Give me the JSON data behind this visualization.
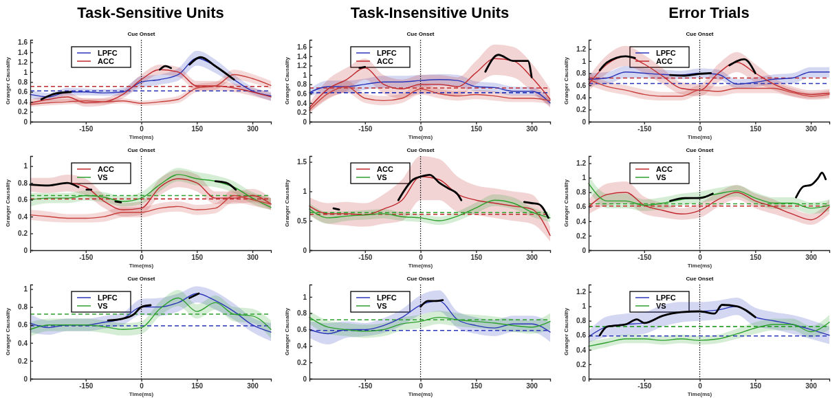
{
  "chart_data": [
    {
      "type": "line",
      "title": "Task-Sensitive Units",
      "xlabel": "Time(ms)",
      "ylabel": "Granger Causality",
      "xlim": [
        -300,
        350
      ],
      "xticks": [
        -150,
        0,
        150,
        300
      ],
      "ylim": [
        0,
        1.65
      ],
      "yticks": [
        0,
        0.2,
        0.4,
        0.6,
        0.8,
        1,
        1.2,
        1.4,
        1.6
      ],
      "legend": "top left",
      "ref_lines": [
        {
          "axis": "x",
          "value": 0,
          "label": "Cue Onset",
          "color": "#000000",
          "line_style": "dotted"
        },
        {
          "axis": "y",
          "value": 0.71,
          "label": null,
          "color": "#c0282d",
          "line_style": "dashed"
        },
        {
          "axis": "y",
          "value": 0.62,
          "label": null,
          "color": "#2a35b8",
          "line_style": "dashed"
        }
      ],
      "series": [
        {
          "name": "LPFC",
          "color": "#2a35b8",
          "x": [
            -300,
            -250,
            -200,
            -150,
            -100,
            -50,
            0,
            50,
            100,
            150,
            200,
            250,
            300,
            350
          ],
          "values": [
            0.55,
            0.5,
            0.6,
            0.6,
            0.58,
            0.6,
            0.8,
            0.85,
            0.95,
            1.28,
            1.12,
            0.85,
            0.62,
            0.52
          ],
          "lower": [
            0.47,
            0.43,
            0.53,
            0.53,
            0.52,
            0.53,
            0.68,
            0.75,
            0.83,
            1.13,
            0.98,
            0.75,
            0.55,
            0.42
          ],
          "upper": [
            0.63,
            0.58,
            0.68,
            0.67,
            0.65,
            0.68,
            0.92,
            0.95,
            1.08,
            1.43,
            1.25,
            0.95,
            0.7,
            0.6
          ]
        },
        {
          "name": "ACC",
          "color": "#c0282d",
          "x": [
            -300,
            -250,
            -200,
            -150,
            -100,
            -50,
            0,
            50,
            100,
            150,
            200,
            250,
            300,
            350
          ],
          "values": [
            0.38,
            0.45,
            0.5,
            0.38,
            0.4,
            0.55,
            0.85,
            1.05,
            1.0,
            0.72,
            0.72,
            0.68,
            0.6,
            0.5
          ],
          "lower": [
            0.32,
            0.38,
            0.42,
            0.3,
            0.33,
            0.47,
            0.75,
            0.95,
            0.9,
            0.63,
            0.63,
            0.6,
            0.52,
            0.42
          ],
          "upper": [
            0.45,
            0.53,
            0.58,
            0.46,
            0.48,
            0.63,
            0.95,
            1.15,
            1.1,
            0.82,
            0.82,
            0.77,
            0.68,
            0.58
          ]
        },
        {
          "color": "#c8403c",
          "x": [
            -300,
            -250,
            -200,
            -150,
            -100,
            -50,
            0,
            50,
            100,
            150,
            200,
            250,
            300,
            350
          ],
          "values": [
            0.35,
            0.38,
            0.4,
            0.42,
            0.4,
            0.42,
            0.37,
            0.4,
            0.45,
            0.68,
            0.72,
            0.95,
            0.87,
            0.73
          ],
          "lower": [
            0.3,
            0.33,
            0.35,
            0.36,
            0.35,
            0.37,
            0.32,
            0.34,
            0.38,
            0.6,
            0.64,
            0.85,
            0.78,
            0.66
          ],
          "upper": [
            0.4,
            0.44,
            0.46,
            0.48,
            0.46,
            0.47,
            0.42,
            0.46,
            0.52,
            0.76,
            0.8,
            1.05,
            0.96,
            0.82
          ]
        },
        {
          "color": "#000000",
          "x": [
            -270,
            -230,
            -190,
            -180,
            50,
            65,
            80,
            90,
            130,
            160,
            200,
            250
          ],
          "values": [
            0.45,
            0.57,
            0.6,
            null,
            1.05,
            1.12,
            1.08,
            null,
            1.15,
            1.3,
            1.12,
            0.85
          ]
        }
      ]
    },
    {
      "type": "line",
      "title": "Task-Insensitive Units",
      "xlabel": "Time(ms)",
      "ylabel": "Granger Causality",
      "xlim": [
        -300,
        350
      ],
      "xticks": [
        -150,
        0,
        150,
        300
      ],
      "ylim": [
        0,
        1.75
      ],
      "yticks": [
        0,
        0.2,
        0.4,
        0.6,
        0.8,
        1,
        1.2,
        1.4,
        1.6
      ],
      "legend": "top left",
      "ref_lines": [
        {
          "axis": "x",
          "value": 0,
          "label": "Cue Onset",
          "color": "#000000",
          "line_style": "dotted"
        },
        {
          "axis": "y",
          "value": 0.72,
          "label": null,
          "color": "#c0282d",
          "line_style": "dashed"
        },
        {
          "axis": "y",
          "value": 0.62,
          "label": null,
          "color": "#2a35b8",
          "line_style": "dashed"
        }
      ],
      "series": [
        {
          "name": "LPFC",
          "color": "#2a35b8",
          "x": [
            -300,
            -250,
            -200,
            -150,
            -100,
            -50,
            0,
            50,
            100,
            150,
            200,
            250,
            300,
            350
          ],
          "values": [
            0.62,
            0.75,
            0.75,
            0.8,
            0.85,
            0.85,
            0.88,
            0.9,
            0.88,
            0.75,
            0.73,
            0.65,
            0.65,
            0.4
          ],
          "lower": [
            0.55,
            0.62,
            0.62,
            0.68,
            0.72,
            0.72,
            0.75,
            0.77,
            0.75,
            0.65,
            0.63,
            0.56,
            0.56,
            0.33
          ],
          "upper": [
            0.7,
            0.88,
            0.88,
            0.92,
            0.98,
            0.98,
            1.0,
            1.02,
            1.0,
            0.86,
            0.83,
            0.75,
            0.74,
            0.48
          ]
        },
        {
          "name": "ACC",
          "color": "#c0282d",
          "x": [
            -300,
            -250,
            -200,
            -150,
            -100,
            -50,
            0,
            50,
            100,
            150,
            200,
            250,
            300,
            350
          ],
          "values": [
            0.3,
            0.7,
            0.9,
            1.15,
            0.8,
            0.7,
            0.8,
            0.8,
            0.75,
            1.05,
            1.35,
            1.3,
            0.95,
            0.48
          ],
          "lower": [
            0.2,
            0.5,
            0.65,
            0.9,
            0.6,
            0.5,
            0.6,
            0.6,
            0.55,
            0.8,
            1.0,
            0.95,
            0.65,
            0.3
          ],
          "upper": [
            0.4,
            0.9,
            1.15,
            1.35,
            1.0,
            0.9,
            1.0,
            1.0,
            0.95,
            1.3,
            1.65,
            1.6,
            1.25,
            0.7
          ]
        },
        {
          "color": "#c8403c",
          "x": [
            -300,
            -250,
            -200,
            -150,
            -100,
            -50,
            0,
            50,
            100,
            150,
            200,
            250,
            300,
            350
          ],
          "values": [
            0.25,
            0.6,
            0.75,
            0.5,
            0.45,
            0.5,
            0.7,
            0.6,
            0.55,
            0.58,
            0.55,
            0.5,
            0.5,
            0.45
          ],
          "lower": [
            0.18,
            0.48,
            0.62,
            0.4,
            0.35,
            0.4,
            0.58,
            0.5,
            0.45,
            0.48,
            0.45,
            0.42,
            0.42,
            0.38
          ],
          "upper": [
            0.32,
            0.72,
            0.88,
            0.6,
            0.55,
            0.6,
            0.82,
            0.7,
            0.65,
            0.68,
            0.65,
            0.58,
            0.58,
            0.52
          ]
        },
        {
          "color": "#000000",
          "x": [
            -165,
            -150,
            -140,
            175,
            210,
            250,
            290,
            300
          ],
          "values": [
            1.15,
            1.17,
            null,
            1.07,
            1.43,
            1.3,
            1.3,
            0.95
          ]
        }
      ]
    },
    {
      "type": "line",
      "title": "Error Trials",
      "xlabel": "Time(ms)",
      "ylabel": "Granger Causality",
      "xlim": [
        -300,
        350
      ],
      "xticks": [
        -150,
        0,
        150,
        300
      ],
      "ylim": [
        0,
        1.35
      ],
      "yticks": [
        0,
        0.2,
        0.4,
        0.6,
        0.8,
        1,
        1.2
      ],
      "legend": "top left",
      "ref_lines": [
        {
          "axis": "x",
          "value": 0,
          "label": "Cue Onset",
          "color": "#000000",
          "line_style": "dotted"
        },
        {
          "axis": "y",
          "value": 0.72,
          "label": null,
          "color": "#c0282d",
          "line_style": "dashed"
        },
        {
          "axis": "y",
          "value": 0.63,
          "label": null,
          "color": "#2a35b8",
          "line_style": "dashed"
        }
      ],
      "series": [
        {
          "name": "LPFC",
          "color": "#2a35b8",
          "x": [
            -300,
            -250,
            -200,
            -150,
            -100,
            -50,
            0,
            50,
            100,
            150,
            200,
            250,
            300,
            350
          ],
          "values": [
            0.7,
            0.72,
            0.82,
            0.8,
            0.78,
            0.77,
            0.8,
            0.78,
            0.62,
            0.65,
            0.7,
            0.72,
            0.82,
            0.82
          ],
          "lower": [
            0.6,
            0.62,
            0.72,
            0.72,
            0.7,
            0.7,
            0.72,
            0.7,
            0.55,
            0.57,
            0.62,
            0.63,
            0.73,
            0.73
          ],
          "upper": [
            0.8,
            0.82,
            0.92,
            0.88,
            0.86,
            0.84,
            0.88,
            0.86,
            0.7,
            0.73,
            0.78,
            0.8,
            0.9,
            0.9
          ]
        },
        {
          "name": "ACC",
          "color": "#c0282d",
          "x": [
            -300,
            -250,
            -200,
            -150,
            -100,
            -50,
            0,
            50,
            100,
            150,
            200,
            250,
            300,
            350
          ],
          "values": [
            0.62,
            0.95,
            1.08,
            0.95,
            0.75,
            0.55,
            0.52,
            0.8,
            0.98,
            0.8,
            0.62,
            0.5,
            0.45,
            0.47
          ],
          "lower": [
            0.5,
            0.8,
            0.92,
            0.8,
            0.62,
            0.45,
            0.42,
            0.65,
            0.82,
            0.65,
            0.52,
            0.42,
            0.38,
            0.4
          ],
          "upper": [
            0.74,
            1.1,
            1.25,
            1.1,
            0.88,
            0.65,
            0.62,
            0.95,
            1.15,
            0.95,
            0.72,
            0.58,
            0.52,
            0.54
          ]
        },
        {
          "color": "#c8403c",
          "x": [
            -300,
            -250,
            -200,
            -150,
            -100,
            -50,
            0,
            50,
            100,
            150,
            200,
            250,
            300,
            350
          ],
          "values": [
            0.7,
            0.58,
            0.52,
            0.45,
            0.42,
            0.42,
            0.52,
            0.5,
            0.55,
            0.55,
            0.55,
            0.48,
            0.42,
            0.45
          ],
          "lower": [
            0.6,
            0.5,
            0.44,
            0.37,
            0.35,
            0.35,
            0.44,
            0.42,
            0.47,
            0.47,
            0.47,
            0.41,
            0.36,
            0.38
          ],
          "upper": [
            0.8,
            0.66,
            0.6,
            0.53,
            0.49,
            0.49,
            0.6,
            0.58,
            0.63,
            0.63,
            0.63,
            0.55,
            0.48,
            0.52
          ]
        },
        {
          "color": "#000000",
          "x": [
            -270,
            -250,
            -200,
            -175,
            -170,
            -80,
            -40,
            0,
            30,
            35,
            80,
            120,
            150
          ],
          "values": [
            0.85,
            0.98,
            1.08,
            1.05,
            null,
            0.77,
            0.76,
            0.79,
            0.8,
            null,
            0.93,
            1.03,
            0.8
          ]
        }
      ]
    },
    {
      "type": "line",
      "xlabel": "Time(ms)",
      "ylabel": "Granger Causality",
      "xlim": [
        -300,
        350
      ],
      "xticks": [
        -150,
        0,
        150,
        300
      ],
      "ylim": [
        0,
        1.12
      ],
      "yticks": [
        0,
        0.2,
        0.4,
        0.6,
        0.8,
        1
      ],
      "legend": "top left",
      "ref_lines": [
        {
          "axis": "x",
          "value": 0,
          "label": "Cue Onset",
          "color": "#000000",
          "line_style": "dotted"
        },
        {
          "axis": "y",
          "value": 0.65,
          "label": null,
          "color": "#2ca02c",
          "line_style": "dashed"
        },
        {
          "axis": "y",
          "value": 0.61,
          "label": null,
          "color": "#c0282d",
          "line_style": "dashed"
        }
      ],
      "series": [
        {
          "name": "ACC",
          "color": "#c0282d",
          "x": [
            -300,
            -250,
            -200,
            -150,
            -100,
            -50,
            0,
            50,
            100,
            150,
            200,
            250,
            300,
            350
          ],
          "values": [
            0.78,
            0.77,
            0.8,
            0.75,
            0.58,
            0.48,
            0.5,
            0.75,
            0.85,
            0.8,
            0.62,
            0.62,
            0.65,
            0.55
          ],
          "lower": [
            0.7,
            0.68,
            0.7,
            0.65,
            0.5,
            0.4,
            0.42,
            0.65,
            0.75,
            0.7,
            0.55,
            0.55,
            0.57,
            0.48
          ],
          "upper": [
            0.86,
            0.86,
            0.9,
            0.85,
            0.66,
            0.56,
            0.58,
            0.85,
            0.95,
            0.9,
            0.7,
            0.7,
            0.73,
            0.62
          ]
        },
        {
          "name": "VS",
          "color": "#2ca02c",
          "x": [
            -300,
            -250,
            -200,
            -150,
            -100,
            -50,
            0,
            50,
            100,
            150,
            200,
            250,
            300,
            350
          ],
          "values": [
            0.6,
            0.62,
            0.62,
            0.65,
            0.63,
            0.58,
            0.62,
            0.78,
            0.9,
            0.85,
            0.82,
            0.75,
            0.62,
            0.51
          ],
          "lower": [
            0.52,
            0.56,
            0.56,
            0.59,
            0.57,
            0.52,
            0.55,
            0.7,
            0.82,
            0.77,
            0.75,
            0.68,
            0.55,
            0.48
          ],
          "upper": [
            0.68,
            0.68,
            0.68,
            0.71,
            0.69,
            0.64,
            0.69,
            0.86,
            0.98,
            0.93,
            0.89,
            0.82,
            0.69,
            0.62
          ]
        },
        {
          "color": "#c8403c",
          "x": [
            -300,
            -250,
            -200,
            -150,
            -100,
            -50,
            0,
            50,
            100,
            150,
            200,
            250,
            300,
            350
          ],
          "values": [
            0.42,
            0.4,
            0.38,
            0.38,
            0.4,
            0.45,
            0.45,
            0.5,
            0.52,
            0.48,
            0.5,
            0.65,
            0.6,
            0.55
          ],
          "lower": [
            0.36,
            0.34,
            0.33,
            0.33,
            0.34,
            0.39,
            0.39,
            0.44,
            0.46,
            0.42,
            0.44,
            0.57,
            0.53,
            0.48
          ],
          "upper": [
            0.48,
            0.46,
            0.43,
            0.43,
            0.46,
            0.51,
            0.51,
            0.56,
            0.58,
            0.54,
            0.56,
            0.73,
            0.67,
            0.62
          ]
        },
        {
          "color": "#000000",
          "x": [
            -300,
            -250,
            -200,
            -170,
            -165,
            -148,
            -135,
            -122,
            -70,
            -55,
            -50,
            200,
            230,
            255
          ],
          "values": [
            0.78,
            0.77,
            0.8,
            0.75,
            null,
            0.72,
            0.72,
            null,
            0.58,
            0.57,
            null,
            0.82,
            0.8,
            0.72
          ]
        }
      ]
    },
    {
      "type": "line",
      "xlabel": "Time(ms)",
      "ylabel": "Granger Causality",
      "xlim": [
        -300,
        350
      ],
      "xticks": [
        -150,
        0,
        150,
        300
      ],
      "ylim": [
        0,
        1.6
      ],
      "yticks": [
        0,
        0.5,
        1,
        1.5
      ],
      "legend": "top left",
      "ref_lines": [
        {
          "axis": "x",
          "value": 0,
          "label": "Cue Onset",
          "color": "#000000",
          "line_style": "dotted"
        },
        {
          "axis": "y",
          "value": 0.64,
          "label": null,
          "color": "#2ca02c",
          "line_style": "dashed"
        },
        {
          "axis": "y",
          "value": 0.61,
          "label": null,
          "color": "#c0282d",
          "line_style": "dashed"
        }
      ],
      "series": [
        {
          "name": "ACC",
          "color": "#c0282d",
          "x": [
            -300,
            -250,
            -200,
            -150,
            -100,
            -50,
            0,
            50,
            100,
            150,
            200,
            250,
            300,
            350
          ],
          "values": [
            0.75,
            0.62,
            0.62,
            0.6,
            0.7,
            0.85,
            1.25,
            1.2,
            0.95,
            0.85,
            0.8,
            0.75,
            0.7,
            0.25
          ],
          "lower": [
            0.6,
            0.45,
            0.42,
            0.4,
            0.45,
            0.5,
            0.85,
            0.85,
            0.65,
            0.6,
            0.55,
            0.5,
            0.45,
            0.15
          ],
          "upper": [
            0.9,
            0.8,
            0.82,
            0.8,
            0.95,
            1.2,
            1.6,
            1.55,
            1.25,
            1.1,
            1.05,
            1.0,
            0.95,
            0.4
          ]
        },
        {
          "name": "VS",
          "color": "#2ca02c",
          "x": [
            -300,
            -250,
            -200,
            -150,
            -100,
            -50,
            0,
            50,
            100,
            150,
            200,
            250,
            300,
            350
          ],
          "values": [
            0.7,
            0.55,
            0.58,
            0.6,
            0.62,
            0.57,
            0.55,
            0.5,
            0.58,
            0.72,
            0.85,
            0.8,
            0.65,
            0.55
          ],
          "lower": [
            0.6,
            0.45,
            0.5,
            0.52,
            0.54,
            0.5,
            0.48,
            0.43,
            0.5,
            0.63,
            0.75,
            0.7,
            0.57,
            0.48
          ],
          "upper": [
            0.8,
            0.65,
            0.66,
            0.68,
            0.7,
            0.64,
            0.62,
            0.57,
            0.66,
            0.81,
            0.95,
            0.9,
            0.73,
            0.62
          ]
        },
        {
          "color": "#000000",
          "x": [
            -235,
            -220,
            -215,
            -60,
            -20,
            0,
            25,
            50,
            75,
            100,
            110,
            115,
            280,
            300,
            320,
            345
          ],
          "values": [
            0.71,
            0.69,
            null,
            0.85,
            1.2,
            1.25,
            1.28,
            1.15,
            1.05,
            0.95,
            0.85,
            null,
            0.82,
            0.8,
            0.78,
            0.55
          ]
        }
      ]
    },
    {
      "type": "line",
      "xlabel": "Time(ms)",
      "ylabel": "Granger Causality",
      "xlim": [
        -300,
        350
      ],
      "xticks": [
        -150,
        0,
        150,
        300
      ],
      "ylim": [
        0,
        1.3
      ],
      "yticks": [
        0,
        0.2,
        0.4,
        0.6,
        0.8,
        1,
        1.2
      ],
      "legend": "top left",
      "ref_lines": [
        {
          "axis": "x",
          "value": 0,
          "label": "Cue Onset",
          "color": "#000000",
          "line_style": "dotted"
        },
        {
          "axis": "y",
          "value": 0.64,
          "label": null,
          "color": "#2ca02c",
          "line_style": "dashed"
        },
        {
          "axis": "y",
          "value": 0.61,
          "label": null,
          "color": "#c0282d",
          "line_style": "dashed"
        }
      ],
      "series": [
        {
          "name": "ACC",
          "color": "#c0282d",
          "x": [
            -300,
            -250,
            -200,
            -150,
            -100,
            -50,
            0,
            50,
            100,
            150,
            200,
            250,
            300,
            350
          ],
          "values": [
            0.6,
            0.77,
            0.8,
            0.62,
            0.55,
            0.5,
            0.55,
            0.7,
            0.8,
            0.68,
            0.6,
            0.5,
            0.42,
            0.6
          ],
          "lower": [
            0.5,
            0.62,
            0.65,
            0.5,
            0.45,
            0.42,
            0.45,
            0.6,
            0.7,
            0.58,
            0.5,
            0.42,
            0.35,
            0.5
          ],
          "upper": [
            0.7,
            0.92,
            0.95,
            0.74,
            0.65,
            0.58,
            0.65,
            0.8,
            0.9,
            0.78,
            0.7,
            0.58,
            0.5,
            0.7
          ]
        },
        {
          "name": "VS",
          "color": "#2ca02c",
          "x": [
            -300,
            -250,
            -200,
            -150,
            -100,
            -50,
            0,
            50,
            100,
            150,
            200,
            250,
            300,
            350
          ],
          "values": [
            0.92,
            0.68,
            0.68,
            0.62,
            0.65,
            0.7,
            0.73,
            0.78,
            0.82,
            0.72,
            0.65,
            0.65,
            0.58,
            0.62
          ],
          "lower": [
            0.82,
            0.58,
            0.58,
            0.54,
            0.57,
            0.62,
            0.65,
            0.7,
            0.74,
            0.64,
            0.57,
            0.57,
            0.5,
            0.54
          ],
          "upper": [
            1.02,
            0.78,
            0.78,
            0.7,
            0.73,
            0.78,
            0.81,
            0.86,
            0.9,
            0.8,
            0.73,
            0.73,
            0.66,
            0.7
          ]
        },
        {
          "color": "#000000",
          "x": [
            -80,
            -40,
            0,
            35,
            40,
            260,
            280,
            300,
            320,
            330,
            340
          ],
          "values": [
            0.68,
            0.72,
            0.72,
            0.78,
            null,
            0.73,
            0.88,
            0.9,
            1.0,
            1.07,
            0.98
          ]
        }
      ]
    },
    {
      "type": "line",
      "xlabel": "Time(ms)",
      "ylabel": "Granger Causality",
      "xlim": [
        -300,
        350
      ],
      "xticks": [
        -150,
        0,
        150,
        300
      ],
      "ylim": [
        0,
        1.05
      ],
      "yticks": [
        0,
        0.2,
        0.4,
        0.6,
        0.8,
        1
      ],
      "legend": "top left",
      "ref_lines": [
        {
          "axis": "x",
          "value": 0,
          "label": "Cue Onset",
          "color": "#000000",
          "line_style": "dotted"
        },
        {
          "axis": "y",
          "value": 0.72,
          "label": null,
          "color": "#2ca02c",
          "line_style": "dashed"
        },
        {
          "axis": "y",
          "value": 0.59,
          "label": null,
          "color": "#2a35b8",
          "line_style": "dashed"
        }
      ],
      "series": [
        {
          "name": "LPFC",
          "color": "#2a35b8",
          "x": [
            -300,
            -250,
            -200,
            -150,
            -100,
            -50,
            0,
            50,
            100,
            150,
            200,
            250,
            300,
            350
          ],
          "values": [
            0.62,
            0.57,
            0.6,
            0.6,
            0.63,
            0.67,
            0.8,
            0.8,
            0.85,
            0.95,
            0.87,
            0.75,
            0.6,
            0.52
          ],
          "lower": [
            0.52,
            0.49,
            0.53,
            0.53,
            0.56,
            0.6,
            0.71,
            0.7,
            0.75,
            0.85,
            0.77,
            0.66,
            0.52,
            0.42
          ],
          "upper": [
            0.72,
            0.65,
            0.67,
            0.67,
            0.7,
            0.74,
            0.89,
            0.9,
            0.95,
            1.03,
            0.97,
            0.84,
            0.68,
            0.62
          ]
        },
        {
          "name": "VS",
          "color": "#2ca02c",
          "x": [
            -300,
            -250,
            -200,
            -150,
            -100,
            -50,
            0,
            50,
            100,
            150,
            200,
            250,
            300,
            350
          ],
          "values": [
            0.55,
            0.6,
            0.6,
            0.6,
            0.58,
            0.55,
            0.57,
            0.78,
            0.9,
            0.75,
            0.85,
            0.72,
            0.7,
            0.55
          ],
          "lower": [
            0.47,
            0.53,
            0.53,
            0.53,
            0.51,
            0.48,
            0.5,
            0.7,
            0.81,
            0.67,
            0.77,
            0.64,
            0.62,
            0.45
          ],
          "upper": [
            0.63,
            0.67,
            0.67,
            0.67,
            0.65,
            0.62,
            0.64,
            0.86,
            0.99,
            0.83,
            0.93,
            0.8,
            0.78,
            0.65
          ]
        },
        {
          "color": "#000000",
          "x": [
            -90,
            -50,
            -20,
            0,
            25,
            30,
            130,
            155
          ],
          "values": [
            0.65,
            0.67,
            0.72,
            0.8,
            0.82,
            null,
            0.9,
            0.95
          ]
        }
      ]
    },
    {
      "type": "line",
      "xlabel": "Time(ms)",
      "ylabel": "Granger Causality",
      "xlim": [
        -300,
        350
      ],
      "xticks": [
        -150,
        0,
        150,
        300
      ],
      "ylim": [
        0,
        1.15
      ],
      "yticks": [
        0,
        0.2,
        0.4,
        0.6,
        0.8,
        1
      ],
      "legend": "top left",
      "ref_lines": [
        {
          "axis": "x",
          "value": 0,
          "label": "Cue Onset",
          "color": "#000000",
          "line_style": "dotted"
        },
        {
          "axis": "y",
          "value": 0.72,
          "label": null,
          "color": "#2ca02c",
          "line_style": "dashed"
        },
        {
          "axis": "y",
          "value": 0.59,
          "label": null,
          "color": "#2a35b8",
          "line_style": "dashed"
        }
      ],
      "series": [
        {
          "name": "LPFC",
          "color": "#2a35b8",
          "x": [
            -300,
            -250,
            -200,
            -150,
            -100,
            -50,
            0,
            50,
            100,
            150,
            200,
            250,
            300,
            350
          ],
          "values": [
            0.6,
            0.55,
            0.6,
            0.6,
            0.65,
            0.75,
            0.9,
            0.95,
            0.72,
            0.65,
            0.62,
            0.67,
            0.67,
            0.57
          ],
          "lower": [
            0.5,
            0.42,
            0.5,
            0.52,
            0.56,
            0.65,
            0.78,
            0.82,
            0.62,
            0.55,
            0.52,
            0.57,
            0.57,
            0.45
          ],
          "upper": [
            0.7,
            0.68,
            0.7,
            0.68,
            0.74,
            0.85,
            1.02,
            1.08,
            0.82,
            0.75,
            0.72,
            0.77,
            0.77,
            0.69
          ]
        },
        {
          "name": "VS",
          "color": "#2ca02c",
          "x": [
            -300,
            -250,
            -200,
            -150,
            -100,
            -50,
            0,
            50,
            100,
            150,
            200,
            250,
            300,
            350
          ],
          "values": [
            0.75,
            0.63,
            0.6,
            0.58,
            0.6,
            0.67,
            0.7,
            0.75,
            0.72,
            0.7,
            0.68,
            0.65,
            0.63,
            0.7
          ],
          "lower": [
            0.67,
            0.55,
            0.52,
            0.5,
            0.52,
            0.59,
            0.62,
            0.67,
            0.64,
            0.62,
            0.6,
            0.57,
            0.55,
            0.6
          ],
          "upper": [
            0.83,
            0.71,
            0.68,
            0.66,
            0.68,
            0.75,
            0.78,
            0.83,
            0.8,
            0.78,
            0.76,
            0.73,
            0.71,
            0.8
          ]
        },
        {
          "color": "#000000",
          "x": [
            0,
            20,
            40,
            60
          ],
          "values": [
            0.88,
            0.95,
            0.95,
            0.96
          ]
        }
      ]
    },
    {
      "type": "line",
      "xlabel": "Time(ms)",
      "ylabel": "Granger Causality",
      "xlim": [
        -300,
        350
      ],
      "xticks": [
        -150,
        0,
        150,
        300
      ],
      "ylim": [
        0,
        1.3
      ],
      "yticks": [
        0,
        0.2,
        0.4,
        0.6,
        0.8,
        1,
        1.2
      ],
      "legend": "top left",
      "ref_lines": [
        {
          "axis": "x",
          "value": 0,
          "label": "Cue Onset",
          "color": "#000000",
          "line_style": "dotted"
        },
        {
          "axis": "y",
          "value": 0.72,
          "label": null,
          "color": "#2ca02c",
          "line_style": "dashed"
        },
        {
          "axis": "y",
          "value": 0.59,
          "label": null,
          "color": "#2a35b8",
          "line_style": "dashed"
        }
      ],
      "series": [
        {
          "name": "LPFC",
          "color": "#2a35b8",
          "x": [
            -300,
            -250,
            -200,
            -150,
            -100,
            -50,
            0,
            50,
            100,
            150,
            200,
            250,
            300,
            350
          ],
          "values": [
            0.58,
            0.72,
            0.75,
            0.77,
            0.87,
            0.92,
            0.93,
            0.95,
            1.0,
            0.85,
            0.8,
            0.75,
            0.68,
            0.6
          ],
          "lower": [
            0.5,
            0.58,
            0.6,
            0.62,
            0.72,
            0.78,
            0.8,
            0.82,
            0.88,
            0.72,
            0.68,
            0.62,
            0.55,
            0.48
          ],
          "upper": [
            0.66,
            0.86,
            0.9,
            0.92,
            1.02,
            1.06,
            1.06,
            1.08,
            1.12,
            0.98,
            0.92,
            0.88,
            0.81,
            0.72
          ]
        },
        {
          "name": "VS",
          "color": "#2ca02c",
          "x": [
            -300,
            -250,
            -200,
            -150,
            -100,
            -50,
            0,
            50,
            100,
            150,
            200,
            250,
            300,
            350
          ],
          "values": [
            0.45,
            0.5,
            0.55,
            0.55,
            0.53,
            0.55,
            0.53,
            0.55,
            0.62,
            0.7,
            0.75,
            0.75,
            0.65,
            0.78
          ],
          "lower": [
            0.38,
            0.44,
            0.49,
            0.49,
            0.47,
            0.49,
            0.47,
            0.49,
            0.55,
            0.62,
            0.67,
            0.67,
            0.57,
            0.68
          ],
          "upper": [
            0.52,
            0.56,
            0.61,
            0.61,
            0.59,
            0.61,
            0.59,
            0.61,
            0.69,
            0.78,
            0.83,
            0.83,
            0.73,
            0.88
          ]
        },
        {
          "color": "#000000",
          "x": [
            -270,
            -250,
            -200,
            -170,
            -150,
            -100,
            -50,
            0,
            40,
            60,
            100,
            150
          ],
          "values": [
            0.6,
            0.72,
            0.75,
            0.82,
            0.77,
            0.87,
            0.92,
            0.93,
            0.9,
            1.02,
            1.0,
            0.85
          ]
        }
      ]
    }
  ]
}
